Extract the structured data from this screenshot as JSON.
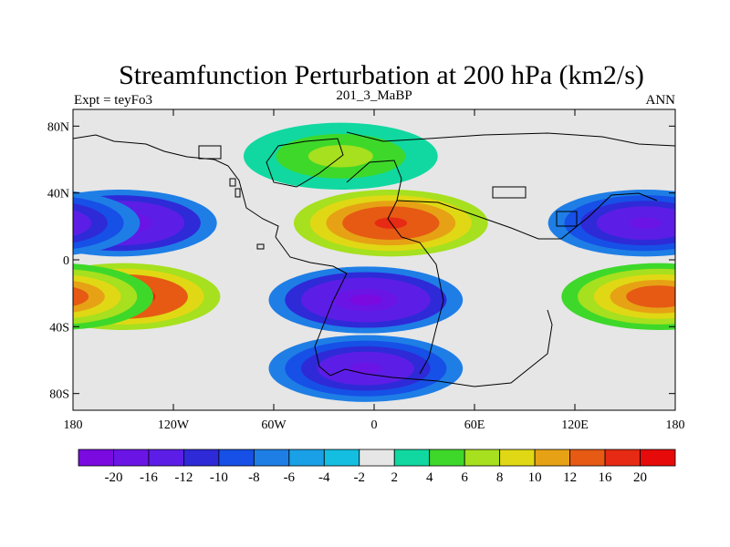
{
  "chart_data": {
    "type": "heatmap",
    "title": "Streamfunction Perturbation at 200 hPa (km2/s)",
    "left_label": "Expt = teyFo3",
    "center_label": "201_3_MaBP",
    "right_label": "ANN",
    "x_ticks": [
      {
        "value": -180,
        "label": "180"
      },
      {
        "value": -120,
        "label": "120W"
      },
      {
        "value": -60,
        "label": "60W"
      },
      {
        "value": 0,
        "label": "0"
      },
      {
        "value": 60,
        "label": "60E"
      },
      {
        "value": 120,
        "label": "120E"
      },
      {
        "value": 180,
        "label": "180"
      }
    ],
    "y_ticks": [
      {
        "value": 80,
        "label": "80N"
      },
      {
        "value": 40,
        "label": "40N"
      },
      {
        "value": 0,
        "label": "0"
      },
      {
        "value": -40,
        "label": "40S"
      },
      {
        "value": -80,
        "label": "80S"
      }
    ],
    "xlim": [
      -180,
      180
    ],
    "ylim": [
      -90,
      90
    ],
    "colorbar": {
      "levels": [
        "-20",
        "-16",
        "-12",
        "-10",
        "-8",
        "-6",
        "-4",
        "-2",
        "2",
        "4",
        "6",
        "8",
        "10",
        "12",
        "16",
        "20"
      ],
      "colors": [
        "#7a0ae0",
        "#6a14e6",
        "#5c1ee6",
        "#2e2ad8",
        "#1650e6",
        "#1e7ee6",
        "#1aa0e6",
        "#14bee0",
        "#e6e6e6",
        "#10d8a0",
        "#3ed82a",
        "#a6e01e",
        "#e0d814",
        "#e6a214",
        "#e65a14",
        "#e62a14",
        "#e60a0a"
      ]
    },
    "features": [
      {
        "name": "south-pacific-low",
        "lon": -152,
        "lat": 22,
        "value": -20
      },
      {
        "name": "south-pacific-high",
        "lon": -150,
        "lat": -22,
        "value": 20
      },
      {
        "name": "africa-high",
        "lon": 10,
        "lat": 22,
        "value": 18
      },
      {
        "name": "south-atlantic-low",
        "lon": -5,
        "lat": -24,
        "value": -20
      },
      {
        "name": "southern-ocean-low",
        "lon": -5,
        "lat": -65,
        "value": -18
      },
      {
        "name": "north-atlantic-high",
        "lon": -20,
        "lat": 62,
        "value": 8
      },
      {
        "name": "west-pacific-low",
        "lon": 162,
        "lat": 22,
        "value": -18
      },
      {
        "name": "west-pacific-high",
        "lon": 170,
        "lat": -22,
        "value": 16
      }
    ]
  }
}
